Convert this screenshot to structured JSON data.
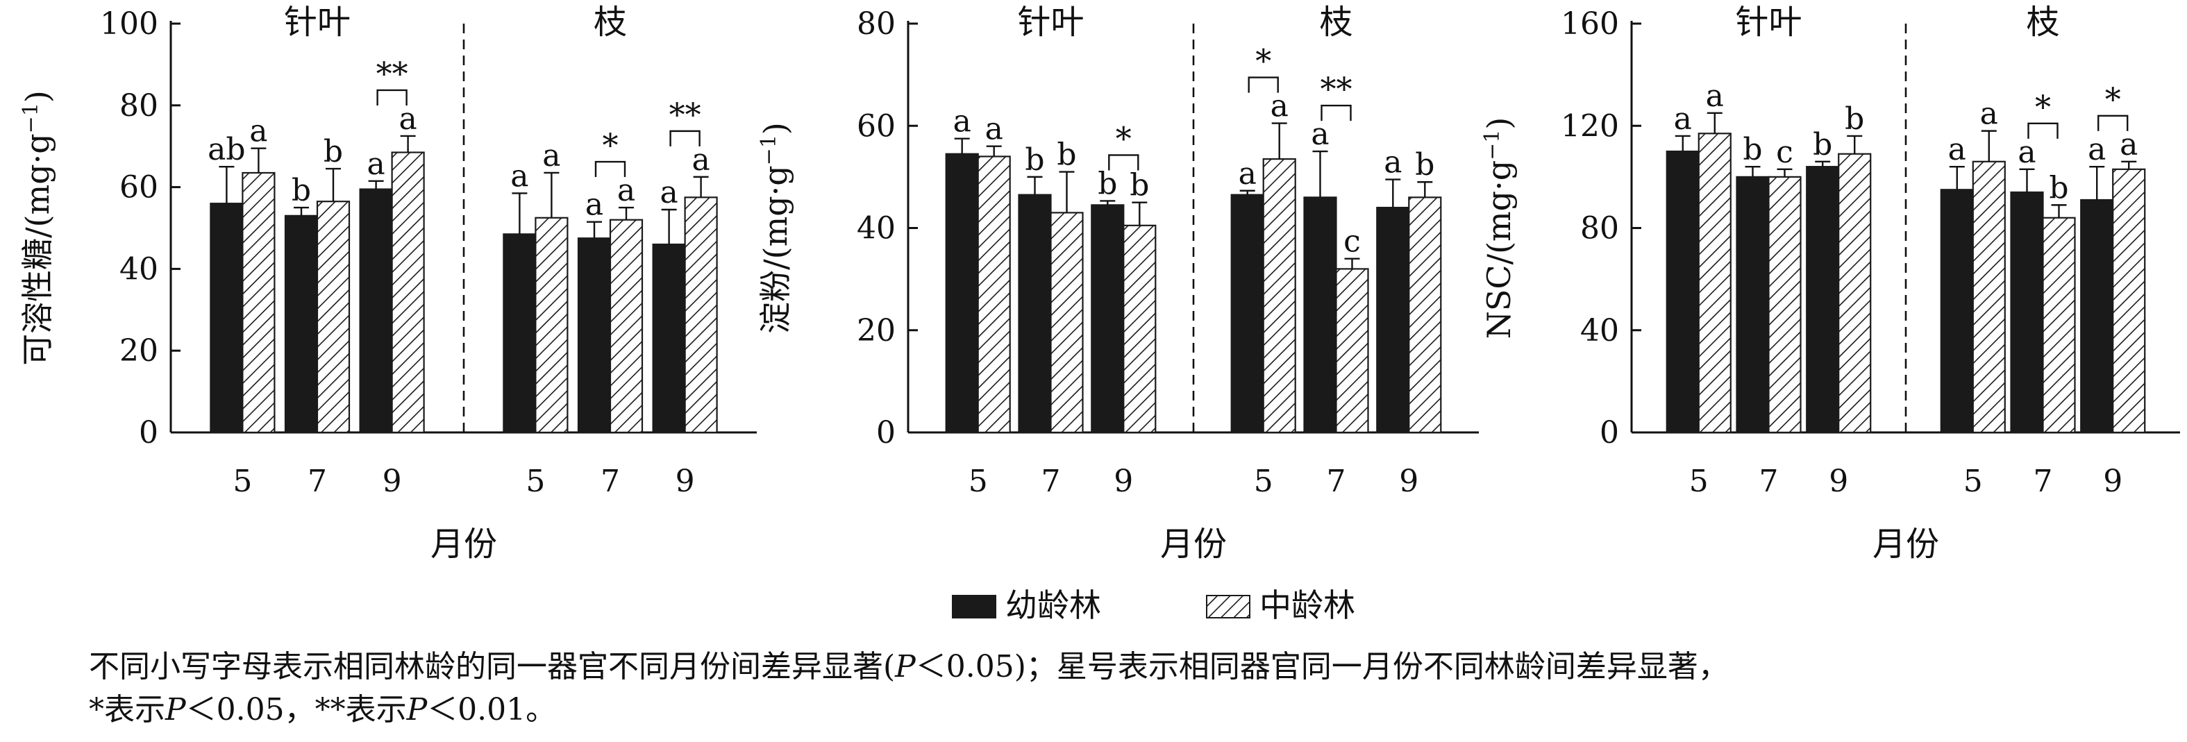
{
  "months": [
    "5",
    "7",
    "9"
  ],
  "panel_group_labels": [
    "针叶",
    "枝"
  ],
  "x_axis_label": "月份",
  "legend": {
    "young": "幼龄林",
    "middle": "中龄林"
  },
  "colors": {
    "young": "#1a1a1a",
    "middle_hatch": "#1a1a1a",
    "axis": "#111111"
  },
  "caption": {
    "line1_a": "不同小写字母表示相同林龄的同一器官不同月份间差异显著(",
    "line1_p": "P",
    "line1_b": "＜0.05)；星号表示相同器官同一月份不同林龄间差异显著，",
    "line2_a": "*表示",
    "line2_p1": "P",
    "line2_b": "＜0.05，**表示",
    "line2_p2": "P",
    "line2_c": "＜0.01。"
  },
  "chart_data": [
    {
      "type": "bar",
      "ylabel": "可溶性糖/(mg·g⁻¹)",
      "ylabel_main": "可溶性糖/(mg·g",
      "ylabel_sup": "−1",
      "ylabel_end": ")",
      "ylim": [
        0,
        100
      ],
      "yticks": [
        0,
        20,
        40,
        60,
        80,
        100
      ],
      "groups": [
        {
          "name": "针叶",
          "months": [
            "5",
            "7",
            "9"
          ],
          "young": {
            "values": [
              56,
              53,
              59.5
            ],
            "errors": [
              9,
              2,
              2
            ],
            "letters": [
              "ab",
              "b",
              "a"
            ]
          },
          "middle": {
            "values": [
              63.5,
              56.5,
              68.5
            ],
            "errors": [
              6,
              8,
              4
            ],
            "letters": [
              "a",
              "b",
              "a"
            ]
          },
          "stars": [
            "",
            "",
            "**"
          ]
        },
        {
          "name": "枝",
          "months": [
            "5",
            "7",
            "9"
          ],
          "young": {
            "values": [
              48.5,
              47.5,
              46
            ],
            "errors": [
              10,
              4,
              8.5
            ],
            "letters": [
              "a",
              "a",
              "a"
            ]
          },
          "middle": {
            "values": [
              52.5,
              52,
              57.5
            ],
            "errors": [
              11,
              3,
              5
            ],
            "letters": [
              "a",
              "a",
              "a"
            ]
          },
          "stars": [
            "",
            "*",
            "**"
          ]
        }
      ]
    },
    {
      "type": "bar",
      "ylabel": "淀粉/(mg·g⁻¹)",
      "ylabel_main": "淀粉/(mg·g",
      "ylabel_sup": "−1",
      "ylabel_end": ")",
      "ylim": [
        0,
        80
      ],
      "yticks": [
        0,
        20,
        40,
        60,
        80
      ],
      "groups": [
        {
          "name": "针叶",
          "months": [
            "5",
            "7",
            "9"
          ],
          "young": {
            "values": [
              54.5,
              46.5,
              44.5
            ],
            "errors": [
              3,
              3.5,
              0.8
            ],
            "letters": [
              "a",
              "b",
              "b"
            ]
          },
          "middle": {
            "values": [
              54,
              43,
              40.5
            ],
            "errors": [
              2,
              8,
              4.5
            ],
            "letters": [
              "a",
              "b",
              "b"
            ]
          },
          "stars": [
            "",
            "",
            "*"
          ]
        },
        {
          "name": "枝",
          "months": [
            "5",
            "7",
            "9"
          ],
          "young": {
            "values": [
              46.5,
              46,
              44
            ],
            "errors": [
              0.8,
              9,
              5.5
            ],
            "letters": [
              "a",
              "a",
              "a"
            ]
          },
          "middle": {
            "values": [
              53.5,
              32,
              46
            ],
            "errors": [
              7,
              2,
              3
            ],
            "letters": [
              "a",
              "c",
              "b"
            ]
          },
          "stars": [
            "*",
            "**",
            ""
          ]
        }
      ]
    },
    {
      "type": "bar",
      "ylabel": "NSC/(mg·g⁻¹)",
      "ylabel_main": "NSC/(mg·g",
      "ylabel_sup": "−1",
      "ylabel_end": ")",
      "ylim": [
        0,
        160
      ],
      "yticks": [
        0,
        40,
        80,
        120,
        160
      ],
      "groups": [
        {
          "name": "针叶",
          "months": [
            "5",
            "7",
            "9"
          ],
          "young": {
            "values": [
              110,
              100,
              104
            ],
            "errors": [
              6,
              4,
              2
            ],
            "letters": [
              "a",
              "b",
              "b"
            ]
          },
          "middle": {
            "values": [
              117,
              100,
              109
            ],
            "errors": [
              8,
              3,
              7
            ],
            "letters": [
              "a",
              "c",
              "b"
            ]
          },
          "stars": [
            "",
            "",
            ""
          ]
        },
        {
          "name": "枝",
          "months": [
            "5",
            "7",
            "9"
          ],
          "young": {
            "values": [
              95,
              94,
              91
            ],
            "errors": [
              9,
              9,
              13
            ],
            "letters": [
              "a",
              "a",
              "a"
            ]
          },
          "middle": {
            "values": [
              106,
              84,
              103
            ],
            "errors": [
              12,
              5,
              3
            ],
            "letters": [
              "a",
              "b",
              "a"
            ]
          },
          "stars": [
            "",
            "*",
            "*"
          ]
        }
      ]
    }
  ]
}
